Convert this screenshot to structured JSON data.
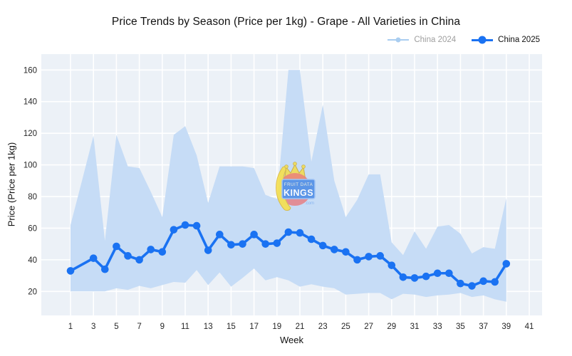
{
  "title": "Price Trends by Season (Price per 1kg) - Grape - All Varieties in China",
  "legend": [
    {
      "label": "China 2024",
      "color": "#a9cdf0",
      "text_color": "#9e9e9e"
    },
    {
      "label": "China 2025",
      "color": "#1a72f2",
      "text_color": "#101010"
    }
  ],
  "axes": {
    "x_title": "Week",
    "y_title": "Price (Price per 1kg)",
    "x_ticks": [
      1,
      3,
      5,
      7,
      9,
      11,
      13,
      15,
      17,
      19,
      21,
      23,
      25,
      27,
      29,
      31,
      33,
      35,
      37,
      39,
      41
    ],
    "y_ticks": [
      20,
      40,
      60,
      80,
      100,
      120,
      140,
      160
    ]
  },
  "watermark": {
    "line1": "FRUIT DATA",
    "line2": "KINGS",
    "line3": ".com"
  },
  "colors": {
    "plot_bg": "#ecf1f7",
    "grid": "#ffffff",
    "band": "#c6dcf6",
    "line": "#1a72f2",
    "tick_label": "#262626"
  },
  "chart_data": {
    "type": "line",
    "title": "Price Trends by Season (Price per 1kg) - Grape - All Varieties in China",
    "xlabel": "Week",
    "ylabel": "Price (Price per 1kg)",
    "xlim": [
      -1.5,
      42
    ],
    "ylim": [
      5,
      170
    ],
    "grid": true,
    "legend_position": "top-right",
    "weeks": [
      1,
      2,
      3,
      4,
      5,
      6,
      7,
      8,
      9,
      10,
      11,
      12,
      13,
      14,
      15,
      16,
      17,
      18,
      19,
      20,
      21,
      22,
      23,
      24,
      25,
      26,
      27,
      28,
      29,
      30,
      31,
      32,
      33,
      34,
      35,
      36,
      37,
      38,
      39
    ],
    "series": [
      {
        "name": "China 2024",
        "type": "band",
        "color": "#c6dcf6",
        "top": [
          62,
          90,
          118.5,
          52,
          119,
          99,
          98,
          83,
          67,
          119,
          124.5,
          106,
          76,
          99,
          99,
          99,
          98,
          81,
          78.5,
          160,
          160,
          102,
          138,
          90,
          67,
          78,
          94,
          94,
          51,
          43,
          58,
          47,
          61,
          62,
          56.5,
          44,
          48,
          47,
          79
        ],
        "bottom": [
          20,
          20,
          20,
          20,
          22,
          21,
          23.5,
          22,
          24,
          26,
          25.5,
          33.5,
          24,
          32,
          23,
          28.5,
          34.5,
          27,
          29,
          27,
          23,
          24.5,
          23,
          22,
          18,
          18.5,
          19,
          19,
          15,
          18.5,
          18,
          16.5,
          17.5,
          18,
          19,
          16.5,
          17.5,
          15,
          13.5
        ]
      },
      {
        "name": "China 2025",
        "type": "line",
        "color": "#1a72f2",
        "values": [
          33,
          null,
          41,
          34,
          48.5,
          42.5,
          40,
          46.5,
          45,
          59,
          62,
          61.5,
          46,
          56,
          49.5,
          50,
          56,
          50,
          50.5,
          57.5,
          57,
          53,
          49,
          46.5,
          45,
          40,
          42,
          42.5,
          36.5,
          29,
          28.5,
          29.5,
          31.5,
          31.5,
          25,
          23.5,
          26.5,
          26,
          37.5
        ]
      }
    ]
  }
}
